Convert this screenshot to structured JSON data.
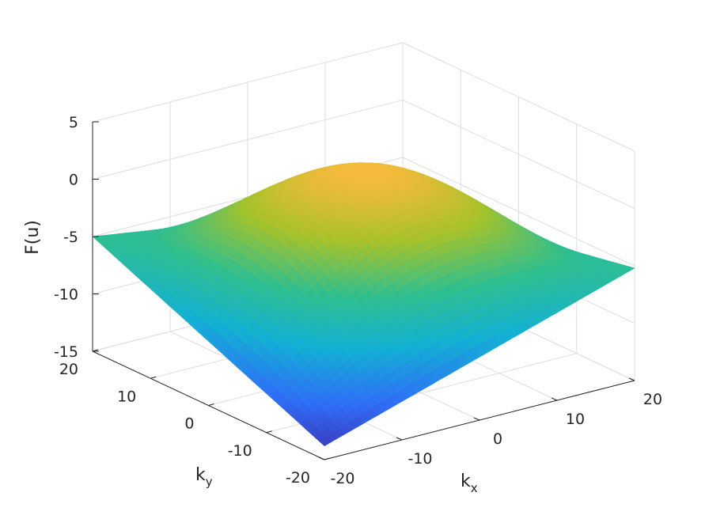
{
  "chart_data": {
    "type": "surface",
    "title": "",
    "xlabel": "k",
    "xlabel_sub": "x",
    "ylabel": "k",
    "ylabel_sub": "y",
    "zlabel": "F(u)",
    "xlim": [
      -20,
      20
    ],
    "ylim": [
      -20,
      20
    ],
    "zlim": [
      -15,
      5
    ],
    "x_ticks": [
      -20,
      -10,
      0,
      10,
      20
    ],
    "y_ticks": [
      -20,
      -10,
      0,
      10,
      20
    ],
    "z_ticks": [
      -15,
      -10,
      -5,
      0,
      5
    ],
    "x_tick_labels": [
      "-20",
      "-10",
      "0",
      "10",
      "20"
    ],
    "y_tick_labels": [
      "-20",
      "-10",
      "0",
      "10",
      "20"
    ],
    "z_tick_labels": [
      "-15",
      "-10",
      "-5",
      "0",
      "5"
    ],
    "grid": true,
    "colormap": [
      "#3e26a8",
      "#2f6ef7",
      "#13b0d4",
      "#2fbf8f",
      "#a6c22a",
      "#f8ba3d",
      "#f9fb15"
    ],
    "corner_values": [
      {
        "x": -20,
        "y": -20,
        "z": -13.8
      },
      {
        "x": 20,
        "y": -20,
        "z": -5.2
      },
      {
        "x": 20,
        "y": 20,
        "z": -9.0
      },
      {
        "x": -20,
        "y": 20,
        "z": -5.0
      }
    ],
    "peak": {
      "x": 0,
      "y": 0,
      "z": 3.9
    }
  }
}
